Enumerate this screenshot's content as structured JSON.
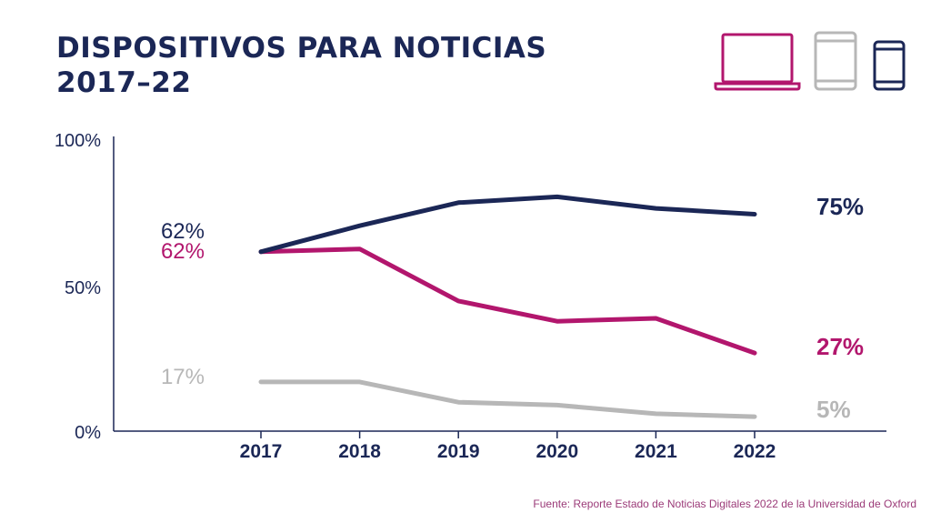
{
  "title_line1": "DISPOSITIVOS PARA NOTICIAS",
  "title_line2": "2017–22",
  "source": "Fuente: Reporte Estado de Noticias Digitales 2022 de la Universidad de Oxford",
  "icons": [
    "laptop-icon",
    "tablet-icon",
    "smartphone-icon"
  ],
  "colors": {
    "laptop": "#b2166d",
    "tablet": "#b7b7b7",
    "smartphone": "#1b2756"
  },
  "chart_data": {
    "type": "line",
    "x": [
      "2017",
      "2018",
      "2019",
      "2020",
      "2021",
      "2022"
    ],
    "ylim": [
      0,
      100
    ],
    "yticks": [
      0,
      50,
      100
    ],
    "ytick_labels": [
      "0%",
      "50%",
      "100%"
    ],
    "grid": false,
    "series": [
      {
        "key": "smartphone",
        "color": "#1b2756",
        "values": [
          62,
          71,
          79,
          81,
          77,
          75
        ],
        "start_label": "62%",
        "end_label": "75%"
      },
      {
        "key": "laptop",
        "color": "#b2166d",
        "values": [
          62,
          63,
          45,
          38,
          39,
          27
        ],
        "start_label": "62%",
        "end_label": "27%"
      },
      {
        "key": "tablet",
        "color": "#b7b7b7",
        "values": [
          17,
          17,
          10,
          9,
          6,
          5
        ],
        "start_label": "17%",
        "end_label": "5%"
      }
    ]
  }
}
